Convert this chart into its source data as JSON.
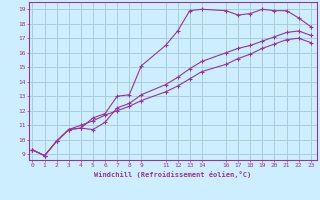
{
  "xlabel": "Windchill (Refroidissement éolien,°C)",
  "background_color": "#cceeff",
  "grid_color": "#aaccdd",
  "line_color": "#993399",
  "x_ticks": [
    0,
    1,
    2,
    3,
    4,
    5,
    6,
    7,
    8,
    9,
    11,
    12,
    13,
    14,
    16,
    17,
    18,
    19,
    20,
    21,
    22,
    23
  ],
  "y_ticks": [
    9,
    10,
    11,
    12,
    13,
    14,
    15,
    16,
    17,
    18,
    19
  ],
  "xlim": [
    -0.3,
    23.5
  ],
  "ylim": [
    8.6,
    19.5
  ],
  "lines": [
    {
      "x": [
        0,
        1,
        2,
        3,
        4,
        5,
        6,
        7,
        8,
        9,
        11,
        12,
        13,
        14,
        16,
        17,
        18,
        19,
        20,
        21,
        22,
        23
      ],
      "y": [
        9.3,
        8.9,
        9.9,
        10.7,
        10.8,
        11.5,
        11.8,
        13.0,
        13.1,
        15.1,
        16.5,
        17.5,
        18.9,
        19.0,
        18.9,
        18.6,
        18.7,
        19.0,
        18.9,
        18.9,
        18.4,
        17.8
      ]
    },
    {
      "x": [
        0,
        1,
        2,
        3,
        4,
        5,
        6,
        7,
        8,
        9,
        11,
        12,
        13,
        14,
        16,
        17,
        18,
        19,
        20,
        21,
        22,
        23
      ],
      "y": [
        9.3,
        8.9,
        9.9,
        10.7,
        10.8,
        10.7,
        11.2,
        12.2,
        12.5,
        13.1,
        13.8,
        14.3,
        14.9,
        15.4,
        16.0,
        16.3,
        16.5,
        16.8,
        17.1,
        17.4,
        17.5,
        17.2
      ]
    },
    {
      "x": [
        0,
        1,
        2,
        3,
        4,
        5,
        6,
        7,
        8,
        9,
        11,
        12,
        13,
        14,
        16,
        17,
        18,
        19,
        20,
        21,
        22,
        23
      ],
      "y": [
        9.3,
        8.9,
        9.9,
        10.7,
        11.0,
        11.3,
        11.7,
        12.0,
        12.3,
        12.7,
        13.3,
        13.7,
        14.2,
        14.7,
        15.2,
        15.6,
        15.9,
        16.3,
        16.6,
        16.9,
        17.0,
        16.7
      ]
    }
  ]
}
